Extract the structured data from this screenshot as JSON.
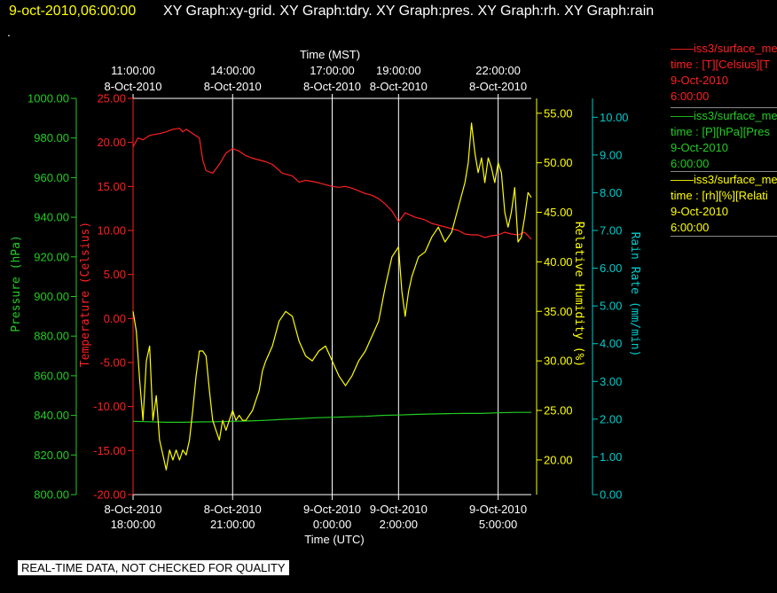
{
  "header": {
    "datetime": "9-oct-2010,06:00:00",
    "graphs": "XY Graph:xy-grid.  XY Graph:tdry.  XY Graph:pres.  XY Graph:rh.  XY Graph:rain",
    "dot": "."
  },
  "footer": {
    "qc_note": "REAL-TIME DATA, NOT CHECKED FOR QUALITY"
  },
  "legend": [
    {
      "line": "——iss3/surface_me",
      "desc": "time : [T][Celsius][T",
      "date": "9-Oct-2010",
      "time": "6:00:00",
      "color": "#ff2020"
    },
    {
      "line": "——iss3/surface_me",
      "desc": "time : [P][hPa][Pres",
      "date": "9-Oct-2010",
      "time": "6:00:00",
      "color": "#22cc22"
    },
    {
      "line": "——iss3/surface_me",
      "desc": "time : [rh][%][Relati",
      "date": "9-Oct-2010",
      "time": "6:00:00",
      "color": "#ffff00"
    }
  ],
  "colors": {
    "temperature": "#ff2020",
    "pressure": "#22cc22",
    "rh": "#ffff00",
    "rain": "#00cccc",
    "grid": "#ffffff",
    "text": "#ffffff"
  },
  "chart_data": {
    "type": "line",
    "top_axis": {
      "label": "Time (MST)",
      "ticks": [
        {
          "t": 0,
          "l1": "11:00:00",
          "l2": "8-Oct-2010"
        },
        {
          "t": 3,
          "l1": "14:00:00",
          "l2": "8-Oct-2010"
        },
        {
          "t": 6,
          "l1": "17:00:00",
          "l2": "8-Oct-2010"
        },
        {
          "t": 8,
          "l1": "19:00:00",
          "l2": "8-Oct-2010"
        },
        {
          "t": 11,
          "l1": "22:00:00",
          "l2": "8-Oct-2010"
        }
      ]
    },
    "bottom_axis": {
      "label": "Time (UTC)",
      "ticks": [
        {
          "t": 0,
          "l1": "8-Oct-2010",
          "l2": "18:00:00"
        },
        {
          "t": 3,
          "l1": "8-Oct-2010",
          "l2": "21:00:00"
        },
        {
          "t": 6,
          "l1": "9-Oct-2010",
          "l2": "0:00:00"
        },
        {
          "t": 8,
          "l1": "9-Oct-2010",
          "l2": "2:00:00"
        },
        {
          "t": 11,
          "l1": "9-Oct-2010",
          "l2": "5:00:00"
        }
      ]
    },
    "x_unit": "hours after 8-Oct-2010 18:00 UTC",
    "xlim": [
      0,
      12
    ],
    "grid_x": [
      3,
      6,
      8,
      11
    ],
    "y_axes": {
      "pressure": {
        "label": "Pressure (hPa)",
        "lim": [
          800,
          1000
        ],
        "ticks": [
          "1000.00",
          "980.00",
          "960.00",
          "940.00",
          "920.00",
          "900.00",
          "880.00",
          "860.00",
          "840.00",
          "820.00",
          "800.00"
        ],
        "tick_values": [
          1000,
          980,
          960,
          940,
          920,
          900,
          880,
          860,
          840,
          820,
          800
        ]
      },
      "temperature": {
        "label": "Temperature (Celsius)",
        "lim": [
          -20,
          25
        ],
        "ticks": [
          "25.00",
          "20.00",
          "15.00",
          "10.00",
          "5.00",
          "0.00",
          "-5.00",
          "-10.00",
          "-15.00",
          "-20.00"
        ],
        "tick_values": [
          25,
          20,
          15,
          10,
          5,
          0,
          -5,
          -10,
          -15,
          -20
        ]
      },
      "rh": {
        "label": "Relative Humidity (%)",
        "lim": [
          16.5,
          56.5
        ],
        "ticks": [
          "55.00",
          "50.00",
          "45.00",
          "40.00",
          "35.00",
          "30.00",
          "25.00",
          "20.00"
        ],
        "tick_values": [
          55,
          50,
          45,
          40,
          35,
          30,
          25,
          20
        ]
      },
      "rain": {
        "label": "Rain Rate (mm/min)",
        "lim": [
          0,
          10.5
        ],
        "ticks": [
          "10.00",
          "9.00",
          "8.00",
          "7.00",
          "6.00",
          "5.00",
          "4.00",
          "3.00",
          "2.00",
          "1.00",
          "0.00"
        ],
        "tick_values": [
          10,
          9,
          8,
          7,
          6,
          5,
          4,
          3,
          2,
          1,
          0
        ]
      }
    },
    "series": [
      {
        "key": "temperature",
        "x": [
          0,
          0.15,
          0.3,
          0.5,
          0.8,
          1.0,
          1.2,
          1.4,
          1.5,
          1.6,
          1.8,
          2.0,
          2.1,
          2.2,
          2.4,
          2.6,
          2.8,
          3.0,
          3.2,
          3.4,
          3.6,
          3.8,
          4.0,
          4.2,
          4.5,
          4.8,
          5.0,
          5.2,
          5.5,
          5.8,
          6.0,
          6.2,
          6.4,
          6.6,
          6.8,
          7.0,
          7.2,
          7.4,
          7.6,
          7.8,
          8.0,
          8.2,
          8.5,
          8.8,
          9.0,
          9.2,
          9.5,
          9.8,
          10.0,
          10.2,
          10.4,
          10.6,
          10.8,
          11.0,
          11.2,
          11.4,
          11.6,
          11.8,
          12.0
        ],
        "y": [
          19.5,
          20.5,
          20.3,
          20.8,
          21.0,
          21.2,
          21.5,
          21.6,
          21.2,
          21.5,
          21.0,
          20.5,
          18.0,
          16.8,
          16.5,
          17.5,
          18.8,
          19.3,
          19.0,
          18.5,
          18.2,
          18.0,
          17.8,
          17.5,
          16.5,
          16.2,
          15.5,
          15.7,
          15.5,
          15.2,
          15.0,
          14.9,
          15.0,
          14.8,
          14.5,
          14.2,
          14.0,
          13.6,
          13.0,
          12.2,
          11.0,
          12.0,
          11.5,
          11.2,
          10.8,
          10.6,
          10.3,
          10.0,
          9.6,
          9.5,
          9.5,
          9.2,
          9.4,
          9.5,
          9.8,
          9.6,
          9.5,
          9.8,
          9.0
        ]
      },
      {
        "key": "pressure",
        "x": [
          0,
          0.5,
          1.0,
          1.5,
          2.0,
          2.5,
          3.0,
          3.5,
          4.0,
          4.5,
          5.0,
          5.5,
          6.0,
          6.5,
          7.0,
          7.5,
          8.0,
          8.5,
          9.0,
          9.5,
          10.0,
          10.5,
          11.0,
          11.5,
          12.0
        ],
        "y": [
          837.0,
          836.8,
          836.5,
          836.5,
          836.7,
          836.8,
          837.0,
          837.2,
          837.5,
          838.0,
          838.3,
          838.8,
          839.0,
          839.3,
          839.5,
          840.0,
          840.2,
          840.5,
          840.7,
          840.9,
          841.0,
          841.0,
          841.3,
          841.5,
          841.5
        ]
      },
      {
        "key": "rh",
        "x": [
          0,
          0.1,
          0.2,
          0.3,
          0.4,
          0.5,
          0.6,
          0.7,
          0.8,
          0.9,
          1.0,
          1.1,
          1.2,
          1.3,
          1.4,
          1.5,
          1.6,
          1.7,
          1.8,
          1.9,
          2.0,
          2.1,
          2.2,
          2.3,
          2.4,
          2.5,
          2.6,
          2.7,
          2.8,
          2.9,
          3.0,
          3.1,
          3.2,
          3.3,
          3.4,
          3.5,
          3.6,
          3.7,
          3.8,
          3.9,
          4.0,
          4.2,
          4.4,
          4.6,
          4.8,
          5.0,
          5.2,
          5.4,
          5.6,
          5.8,
          6.0,
          6.2,
          6.4,
          6.6,
          6.8,
          7.0,
          7.2,
          7.4,
          7.6,
          7.8,
          8.0,
          8.1,
          8.2,
          8.3,
          8.4,
          8.6,
          8.8,
          9.0,
          9.2,
          9.4,
          9.6,
          9.8,
          10.0,
          10.1,
          10.2,
          10.3,
          10.4,
          10.5,
          10.6,
          10.7,
          10.8,
          10.9,
          11.0,
          11.1,
          11.2,
          11.3,
          11.4,
          11.5,
          11.6,
          11.7,
          11.8,
          11.9,
          12.0
        ],
        "y": [
          35.0,
          33.0,
          28.0,
          24.0,
          30.0,
          31.5,
          24.0,
          26.5,
          22.0,
          20.5,
          19.0,
          21.0,
          20.0,
          21.0,
          20.0,
          21.0,
          20.5,
          22.0,
          25.0,
          28.5,
          31.0,
          31.0,
          30.5,
          27.0,
          24.0,
          23.0,
          22.0,
          24.0,
          23.0,
          24.0,
          25.0,
          24.0,
          24.5,
          24.0,
          24.0,
          24.5,
          25.0,
          26.0,
          27.0,
          29.0,
          30.0,
          31.5,
          34.0,
          35.0,
          34.5,
          32.0,
          30.5,
          30.0,
          31.0,
          31.5,
          30.0,
          28.5,
          27.5,
          28.5,
          30.0,
          31.0,
          32.5,
          34.0,
          37.5,
          40.5,
          41.5,
          37.0,
          34.5,
          37.0,
          38.5,
          40.5,
          41.0,
          42.5,
          43.5,
          42.0,
          43.0,
          45.5,
          48.0,
          50.0,
          54.0,
          51.0,
          49.0,
          50.5,
          48.0,
          50.5,
          49.5,
          48.0,
          50.0,
          49.0,
          45.0,
          43.5,
          45.0,
          47.5,
          42.0,
          42.5,
          44.5,
          47.0,
          46.5
        ]
      }
    ]
  }
}
